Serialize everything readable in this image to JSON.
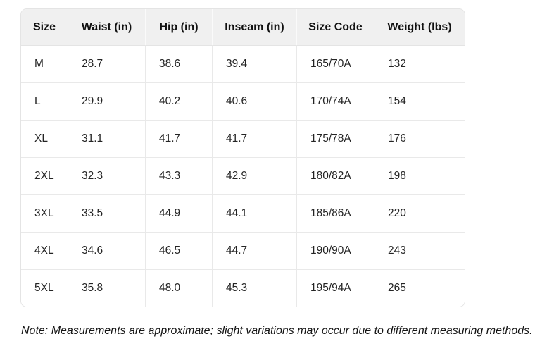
{
  "chart_data": {
    "type": "table",
    "columns": [
      "Size",
      "Waist (in)",
      "Hip (in)",
      "Inseam (in)",
      "Size Code",
      "Weight (lbs)"
    ],
    "rows": [
      [
        "M",
        "28.7",
        "38.6",
        "39.4",
        "165/70A",
        "132"
      ],
      [
        "L",
        "29.9",
        "40.2",
        "40.6",
        "170/74A",
        "154"
      ],
      [
        "XL",
        "31.1",
        "41.7",
        "41.7",
        "175/78A",
        "176"
      ],
      [
        "2XL",
        "32.3",
        "43.3",
        "42.9",
        "180/82A",
        "198"
      ],
      [
        "3XL",
        "33.5",
        "44.9",
        "44.1",
        "185/86A",
        "220"
      ],
      [
        "4XL",
        "34.6",
        "46.5",
        "44.7",
        "190/90A",
        "243"
      ],
      [
        "5XL",
        "35.8",
        "48.0",
        "45.3",
        "195/94A",
        "265"
      ]
    ]
  },
  "note": "Note: Measurements are approximate; slight variations may occur due to different measuring methods.",
  "colors": {
    "header_bg": "#f0f0f0",
    "border": "#e9e9e9",
    "text": "#242424"
  }
}
